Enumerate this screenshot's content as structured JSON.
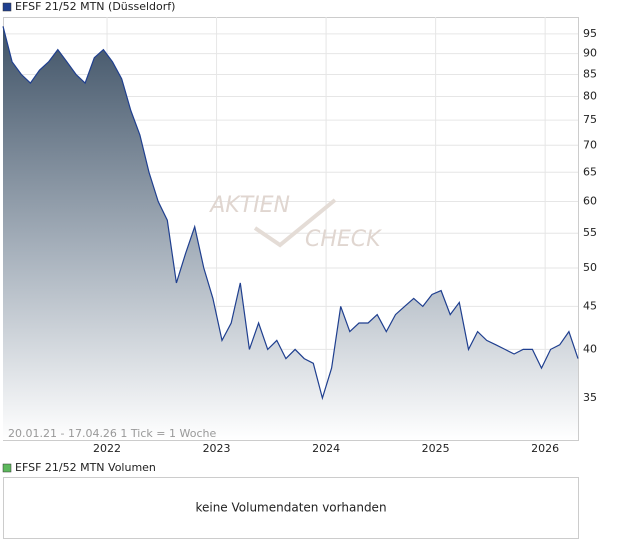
{
  "chart_data": {
    "type": "area",
    "title": "EFSF 21/52 MTN (Düsseldorf)",
    "footnote": "20.01.21 - 17.04.26   1 Tick = 1 Woche",
    "watermark": [
      "AKTIEN",
      "CHECK"
    ],
    "log_scale": true,
    "grid": true,
    "series": [
      {
        "name": "EFSF 21/52 MTN (Düsseldorf)",
        "color": "#1f3f8f",
        "values": [
          97,
          88,
          85,
          83,
          86,
          88,
          91,
          88,
          85,
          83,
          89,
          91,
          88,
          84,
          77,
          72,
          65,
          60,
          57,
          48,
          52,
          56,
          50,
          46,
          41,
          43,
          48,
          40,
          43,
          40,
          41,
          39,
          40,
          39,
          38.5,
          35,
          38,
          45,
          42,
          43,
          43,
          44,
          42,
          44,
          45,
          46,
          45,
          46.5,
          47,
          44,
          45.5,
          40,
          42,
          41,
          40.5,
          40,
          39.5,
          40,
          40,
          38,
          40,
          40.5,
          42,
          39
        ]
      }
    ],
    "x": [
      0,
      1,
      2,
      3,
      4,
      5,
      6,
      7,
      8,
      9,
      10,
      11,
      12,
      13,
      14,
      15,
      16,
      17,
      18,
      19,
      20,
      21,
      22,
      23,
      24,
      25,
      26,
      27,
      28,
      29,
      30,
      31,
      32,
      33,
      34,
      35,
      36,
      37,
      38,
      39,
      40,
      41,
      42,
      43,
      44,
      45,
      46,
      47,
      48,
      49,
      50,
      51,
      52,
      53,
      54,
      55,
      56,
      57,
      58,
      59,
      60,
      61,
      62,
      63
    ],
    "xlim": [
      0,
      63
    ],
    "xticks": [
      {
        "value": 11.4,
        "label": "2022"
      },
      {
        "value": 23.4,
        "label": "2023"
      },
      {
        "value": 35.4,
        "label": "2024"
      },
      {
        "value": 47.4,
        "label": "2025"
      },
      {
        "value": 59.4,
        "label": "2026"
      }
    ],
    "ylim": [
      31.2,
      99.5
    ],
    "yticks": [
      35,
      40,
      45,
      50,
      55,
      60,
      65,
      70,
      75,
      80,
      85,
      90,
      95
    ]
  },
  "volume_panel": {
    "legend": "EFSF 21/52 MTN Volumen",
    "color": "#5cb85c",
    "message": "keine Volumendaten vorhanden"
  }
}
